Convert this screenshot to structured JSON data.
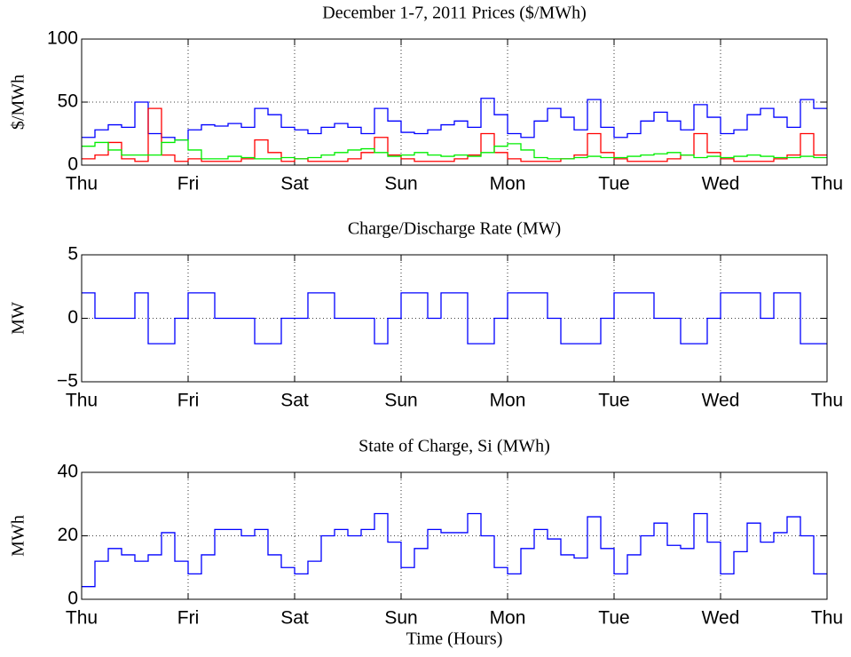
{
  "chart_data": [
    {
      "type": "line",
      "title": "December 1-7, 2011 Prices ($/MWh)",
      "ylabel": "$/MWh",
      "stairs": true,
      "grid": true,
      "x": [
        0,
        3,
        6,
        9,
        12,
        15,
        18,
        21,
        24,
        27,
        30,
        33,
        36,
        39,
        42,
        45,
        48,
        51,
        54,
        57,
        60,
        63,
        66,
        69,
        72,
        75,
        78,
        81,
        84,
        87,
        90,
        93,
        96,
        99,
        102,
        105,
        108,
        111,
        114,
        117,
        120,
        123,
        126,
        129,
        132,
        135,
        138,
        141,
        144,
        147,
        150,
        153,
        156,
        159,
        162,
        165
      ],
      "xlim": [
        0,
        168
      ],
      "xticks": [
        {
          "value": 0,
          "label": "Thu"
        },
        {
          "value": 24,
          "label": "Fri"
        },
        {
          "value": 48,
          "label": "Sat"
        },
        {
          "value": 72,
          "label": "Sun"
        },
        {
          "value": 96,
          "label": "Mon"
        },
        {
          "value": 120,
          "label": "Tue"
        },
        {
          "value": 144,
          "label": "Wed"
        },
        {
          "value": 168,
          "label": "Thu"
        }
      ],
      "ylim": [
        0,
        100
      ],
      "yticks": [
        0,
        50,
        100
      ],
      "series": [
        {
          "color": "#0000ff",
          "values": [
            22,
            28,
            32,
            30,
            50,
            25,
            22,
            20,
            28,
            32,
            31,
            33,
            30,
            45,
            40,
            30,
            28,
            25,
            30,
            33,
            30,
            25,
            45,
            35,
            26,
            25,
            28,
            32,
            35,
            30,
            53,
            40,
            25,
            22,
            35,
            45,
            38,
            28,
            52,
            30,
            22,
            25,
            35,
            42,
            35,
            28,
            48,
            38,
            25,
            28,
            40,
            45,
            38,
            30,
            52,
            45
          ]
        },
        {
          "color": "#ff0000",
          "values": [
            5,
            8,
            18,
            5,
            3,
            45,
            8,
            3,
            5,
            3,
            3,
            3,
            5,
            20,
            10,
            3,
            5,
            3,
            3,
            3,
            5,
            10,
            22,
            8,
            5,
            3,
            3,
            3,
            5,
            8,
            25,
            10,
            5,
            3,
            3,
            3,
            5,
            8,
            25,
            10,
            5,
            3,
            3,
            3,
            5,
            8,
            25,
            10,
            5,
            3,
            3,
            3,
            5,
            8,
            25,
            8
          ]
        },
        {
          "color": "#00ee00",
          "values": [
            15,
            18,
            12,
            8,
            8,
            8,
            18,
            20,
            12,
            5,
            5,
            7,
            6,
            5,
            5,
            6,
            5,
            6,
            8,
            10,
            12,
            13,
            10,
            7,
            8,
            10,
            8,
            7,
            8,
            7,
            10,
            15,
            17,
            12,
            6,
            5,
            5,
            6,
            7,
            6,
            6,
            7,
            8,
            9,
            10,
            8,
            6,
            7,
            6,
            7,
            8,
            7,
            6,
            6,
            7,
            6
          ]
        }
      ]
    },
    {
      "type": "line",
      "title": "Charge/Discharge Rate (MW)",
      "ylabel": "MW",
      "stairs": true,
      "grid": true,
      "x": [
        0,
        3,
        6,
        9,
        12,
        15,
        18,
        21,
        24,
        27,
        30,
        33,
        36,
        39,
        42,
        45,
        48,
        51,
        54,
        57,
        60,
        63,
        66,
        69,
        72,
        75,
        78,
        81,
        84,
        87,
        90,
        93,
        96,
        99,
        102,
        105,
        108,
        111,
        114,
        117,
        120,
        123,
        126,
        129,
        132,
        135,
        138,
        141,
        144,
        147,
        150,
        153,
        156,
        159,
        162,
        165
      ],
      "xlim": [
        0,
        168
      ],
      "xticks": [
        {
          "value": 0,
          "label": "Thu"
        },
        {
          "value": 24,
          "label": "Fri"
        },
        {
          "value": 48,
          "label": "Sat"
        },
        {
          "value": 72,
          "label": "Sun"
        },
        {
          "value": 96,
          "label": "Mon"
        },
        {
          "value": 120,
          "label": "Tue"
        },
        {
          "value": 144,
          "label": "Wed"
        },
        {
          "value": 168,
          "label": "Thu"
        }
      ],
      "ylim": [
        -5,
        5
      ],
      "yticks": [
        {
          "value": -5,
          "label": "−5"
        },
        0,
        5
      ],
      "series": [
        {
          "color": "#0000ff",
          "values": [
            2,
            0,
            0,
            0,
            2,
            -2,
            -2,
            0,
            2,
            2,
            0,
            0,
            0,
            -2,
            -2,
            0,
            0,
            2,
            2,
            0,
            0,
            0,
            -2,
            0,
            2,
            2,
            0,
            2,
            2,
            -2,
            -2,
            0,
            2,
            2,
            2,
            0,
            -2,
            -2,
            -2,
            0,
            2,
            2,
            2,
            0,
            0,
            -2,
            -2,
            0,
            2,
            2,
            2,
            0,
            2,
            2,
            -2,
            -2
          ]
        }
      ]
    },
    {
      "type": "line",
      "title": "State of Charge, Si (MWh)",
      "ylabel": "MWh",
      "xlabel": "Time (Hours)",
      "stairs": true,
      "grid": true,
      "x": [
        0,
        3,
        6,
        9,
        12,
        15,
        18,
        21,
        24,
        27,
        30,
        33,
        36,
        39,
        42,
        45,
        48,
        51,
        54,
        57,
        60,
        63,
        66,
        69,
        72,
        75,
        78,
        81,
        84,
        87,
        90,
        93,
        96,
        99,
        102,
        105,
        108,
        111,
        114,
        117,
        120,
        123,
        126,
        129,
        132,
        135,
        138,
        141,
        144,
        147,
        150,
        153,
        156,
        159,
        162,
        165
      ],
      "xlim": [
        0,
        168
      ],
      "xticks": [
        {
          "value": 0,
          "label": "Thu"
        },
        {
          "value": 24,
          "label": "Fri"
        },
        {
          "value": 48,
          "label": "Sat"
        },
        {
          "value": 72,
          "label": "Sun"
        },
        {
          "value": 96,
          "label": "Mon"
        },
        {
          "value": 120,
          "label": "Tue"
        },
        {
          "value": 144,
          "label": "Wed"
        },
        {
          "value": 168,
          "label": "Thu"
        }
      ],
      "ylim": [
        0,
        40
      ],
      "yticks": [
        0,
        20,
        40
      ],
      "series": [
        {
          "color": "#0000ff",
          "values": [
            4,
            12,
            16,
            14,
            12,
            14,
            21,
            12,
            8,
            14,
            22,
            22,
            20,
            22,
            14,
            10,
            8,
            12,
            20,
            22,
            20,
            22,
            27,
            18,
            10,
            16,
            22,
            21,
            21,
            27,
            20,
            10,
            8,
            16,
            22,
            19,
            14,
            13,
            26,
            16,
            8,
            14,
            20,
            24,
            17,
            16,
            27,
            18,
            8,
            15,
            24,
            18,
            21,
            26,
            20,
            8
          ]
        }
      ]
    }
  ]
}
